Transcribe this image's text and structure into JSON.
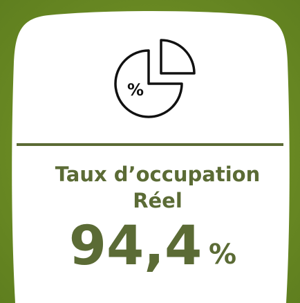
{
  "card": {
    "title_line1": "Taux d’occupation",
    "title_line2": "Réel",
    "value": "94,4",
    "unit": "%",
    "icon_symbol": "%"
  }
}
